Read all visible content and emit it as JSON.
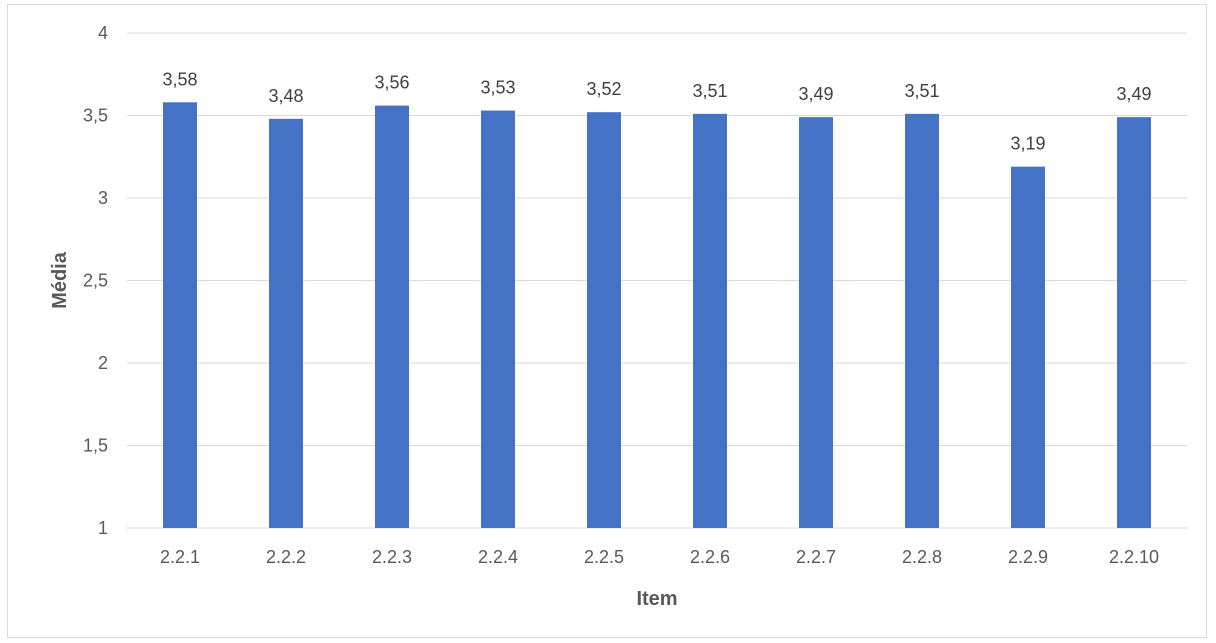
{
  "chart_data": {
    "type": "bar",
    "title": "",
    "xlabel": "Item",
    "ylabel": "Média",
    "categories": [
      "2.2.1",
      "2.2.2",
      "2.2.3",
      "2.2.4",
      "2.2.5",
      "2.2.6",
      "2.2.7",
      "2.2.8",
      "2.2.9",
      "2.2.10"
    ],
    "values": [
      3.58,
      3.48,
      3.56,
      3.53,
      3.52,
      3.51,
      3.49,
      3.51,
      3.19,
      3.49
    ],
    "value_labels": [
      "3,58",
      "3,48",
      "3,56",
      "3,53",
      "3,52",
      "3,51",
      "3,49",
      "3,51",
      "3,19",
      "3,49"
    ],
    "ylim": [
      1,
      4
    ],
    "yticks": [
      1,
      1.5,
      2,
      2.5,
      3,
      3.5,
      4
    ],
    "ytick_labels": [
      "1",
      "1,5",
      "2",
      "2,5",
      "3",
      "3,5",
      "4"
    ],
    "grid": true,
    "legend": "none",
    "bar_color": "#4472C4",
    "grid_color": "#d9d9d9"
  }
}
